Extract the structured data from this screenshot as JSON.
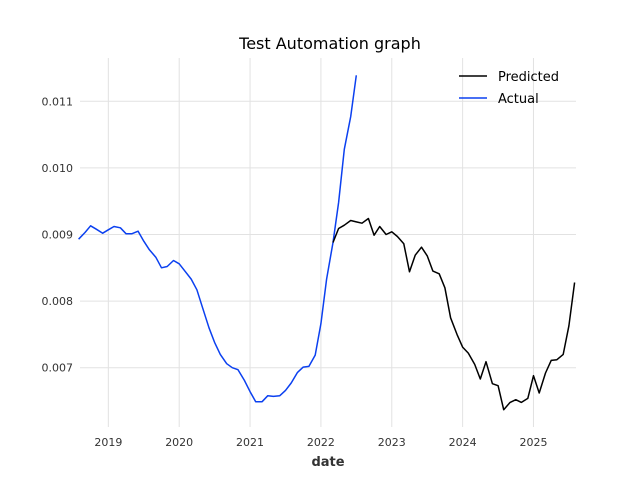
{
  "chart_data": {
    "type": "line",
    "title": "Test Automation graph",
    "xlabel": "date",
    "ylabel": "",
    "xlim": [
      2018.6,
      2025.6
    ],
    "ylim": [
      0.00611,
      0.01165
    ],
    "x_ticks": [
      2019,
      2020,
      2021,
      2022,
      2023,
      2024,
      2025
    ],
    "x_tick_labels": [
      "2019",
      "2020",
      "2021",
      "2022",
      "2023",
      "2024",
      "2025"
    ],
    "y_ticks": [
      0.007,
      0.008,
      0.009,
      0.01,
      0.011
    ],
    "y_tick_labels": [
      "0.007",
      "0.008",
      "0.009",
      "0.010",
      "0.011"
    ],
    "grid": true,
    "legend_position": "top-right",
    "series": [
      {
        "name": "Actual",
        "color": "#0b40f0",
        "x": [
          2018.58,
          2018.67,
          2018.75,
          2018.83,
          2018.92,
          2019.0,
          2019.08,
          2019.17,
          2019.25,
          2019.33,
          2019.42,
          2019.5,
          2019.58,
          2019.67,
          2019.75,
          2019.83,
          2019.92,
          2020.0,
          2020.08,
          2020.17,
          2020.25,
          2020.33,
          2020.42,
          2020.5,
          2020.58,
          2020.67,
          2020.75,
          2020.83,
          2020.92,
          2021.0,
          2021.08,
          2021.17,
          2021.25,
          2021.33,
          2021.42,
          2021.5,
          2021.58,
          2021.67,
          2021.75,
          2021.83,
          2021.92,
          2022.0,
          2022.08,
          2022.17,
          2022.25,
          2022.33,
          2022.42,
          2022.5
        ],
        "values": [
          0.00893,
          0.00903,
          0.00913,
          0.00908,
          0.00902,
          0.00907,
          0.00912,
          0.0091,
          0.00901,
          0.00901,
          0.00905,
          0.0089,
          0.00877,
          0.00866,
          0.0085,
          0.00852,
          0.00861,
          0.00856,
          0.00845,
          0.00833,
          0.00817,
          0.0079,
          0.0076,
          0.00738,
          0.0072,
          0.00706,
          0.007,
          0.00697,
          0.00681,
          0.00664,
          0.00649,
          0.00649,
          0.00658,
          0.00657,
          0.00658,
          0.00666,
          0.00677,
          0.00693,
          0.00701,
          0.00702,
          0.00719,
          0.00766,
          0.00833,
          0.00888,
          0.00948,
          0.01028,
          0.01077,
          0.01139
        ]
      },
      {
        "name": "Predicted",
        "color": "#000000",
        "x": [
          2022.17,
          2022.25,
          2022.33,
          2022.42,
          2022.5,
          2022.58,
          2022.67,
          2022.75,
          2022.83,
          2022.92,
          2023.0,
          2023.08,
          2023.17,
          2023.25,
          2023.33,
          2023.42,
          2023.5,
          2023.58,
          2023.67,
          2023.75,
          2023.83,
          2023.92,
          2024.0,
          2024.08,
          2024.17,
          2024.25,
          2024.33,
          2024.42,
          2024.5,
          2024.58,
          2024.67,
          2024.75,
          2024.83,
          2024.92,
          2025.0,
          2025.08,
          2025.17,
          2025.25,
          2025.33,
          2025.42,
          2025.5,
          2025.58
        ],
        "values": [
          0.00888,
          0.00909,
          0.00914,
          0.00921,
          0.00919,
          0.00917,
          0.00924,
          0.00899,
          0.00912,
          0.009,
          0.00904,
          0.00897,
          0.00886,
          0.00844,
          0.00869,
          0.00881,
          0.00868,
          0.00845,
          0.00841,
          0.0082,
          0.00775,
          0.0075,
          0.00731,
          0.00722,
          0.00705,
          0.00683,
          0.00709,
          0.00676,
          0.00673,
          0.00637,
          0.00648,
          0.00652,
          0.00648,
          0.00654,
          0.00688,
          0.00662,
          0.00692,
          0.00711,
          0.00712,
          0.0072,
          0.00763,
          0.00828
        ]
      }
    ]
  }
}
